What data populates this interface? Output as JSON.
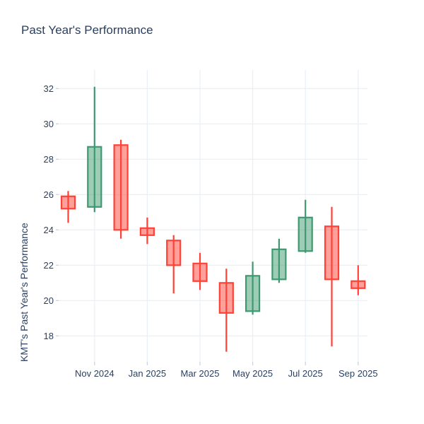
{
  "title": "Past Year's Performance",
  "chart_data": {
    "type": "candlestick",
    "title": "Past Year's Performance",
    "xlabel": "",
    "ylabel": "KMT's Past Year's Performance",
    "categories": [
      "Oct 2024",
      "Nov 2024",
      "Dec 2024",
      "Jan 2025",
      "Feb 2025",
      "Mar 2025",
      "Apr 2025",
      "May 2025",
      "Jun 2025",
      "Jul 2025",
      "Aug 2025",
      "Sep 2025"
    ],
    "series": [
      {
        "name": "open",
        "values": [
          25.9,
          25.3,
          28.8,
          24.1,
          23.4,
          22.1,
          21.0,
          19.4,
          21.2,
          22.8,
          24.2,
          21.1
        ]
      },
      {
        "name": "high",
        "values": [
          26.2,
          32.1,
          29.1,
          24.7,
          23.7,
          22.7,
          21.8,
          22.2,
          23.5,
          25.7,
          25.3,
          22.0
        ]
      },
      {
        "name": "low",
        "values": [
          24.4,
          25.0,
          23.5,
          23.2,
          20.4,
          20.6,
          17.1,
          19.2,
          21.0,
          22.7,
          17.4,
          20.3
        ]
      },
      {
        "name": "close",
        "values": [
          25.2,
          28.7,
          24.0,
          23.7,
          22.0,
          21.1,
          19.3,
          21.4,
          22.9,
          24.7,
          21.2,
          20.7
        ]
      }
    ],
    "x_tick_labels": [
      "Nov 2024",
      "Jan 2025",
      "Mar 2025",
      "May 2025",
      "Jul 2025",
      "Sep 2025"
    ],
    "x_tick_indices": [
      1,
      3,
      5,
      7,
      9,
      11
    ],
    "y_ticks": [
      18,
      20,
      22,
      24,
      26,
      28,
      30,
      32
    ],
    "ylim": [
      16.5,
      33.1
    ],
    "grid": true,
    "legend_position": "none",
    "colors": {
      "increasing_line": "#3D9970",
      "increasing_fill": "rgba(61,153,112,0.5)",
      "decreasing_line": "#FF4136",
      "decreasing_fill": "rgba(255,65,54,0.5)",
      "grid": "#EBF0F8",
      "tick_mark": "#CBD5E0",
      "text": "#2a3f5f",
      "background": "#ffffff"
    }
  }
}
